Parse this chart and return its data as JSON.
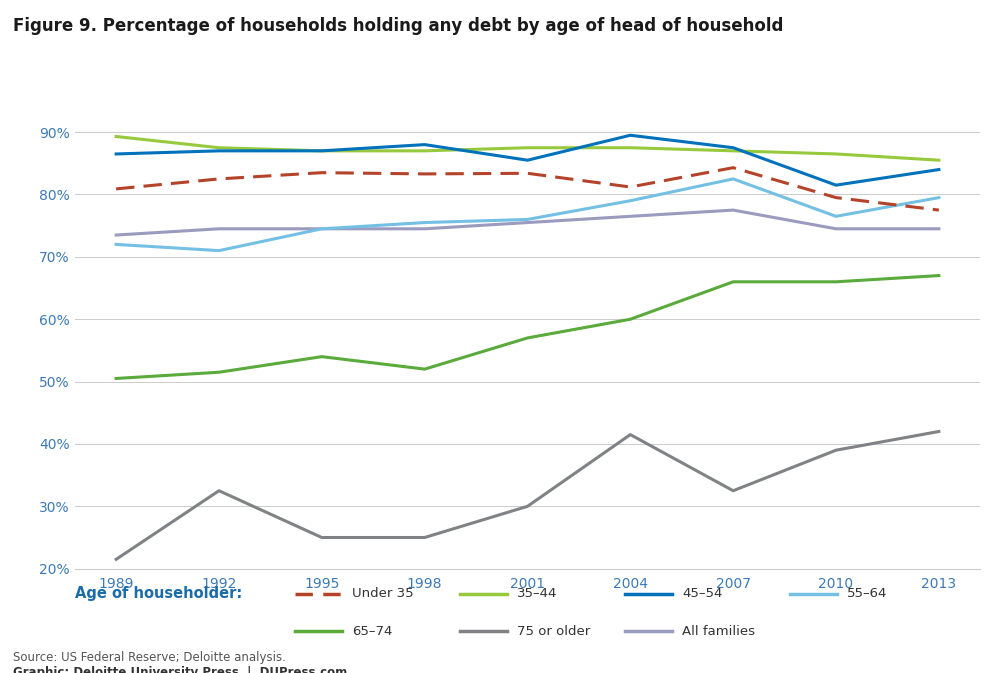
{
  "title": "Figure 9. Percentage of households holding any debt by age of head of household",
  "years": [
    1989,
    1992,
    1995,
    1998,
    2001,
    2004,
    2007,
    2010,
    2013
  ],
  "series": {
    "Under 35": {
      "values": [
        80.9,
        82.5,
        83.5,
        83.3,
        83.4,
        81.2,
        84.3,
        79.5,
        77.5
      ],
      "color": "#b5432a",
      "linestyle": "dashed",
      "linewidth": 2.2,
      "zorder": 4
    },
    "35–44": {
      "values": [
        89.3,
        87.5,
        87.0,
        87.0,
        87.5,
        87.5,
        87.0,
        86.5,
        85.5
      ],
      "color": "#97c93d",
      "linestyle": "solid",
      "linewidth": 2.2,
      "zorder": 4
    },
    "45–54": {
      "values": [
        86.5,
        87.0,
        87.0,
        88.0,
        85.5,
        89.5,
        87.5,
        81.5,
        84.0
      ],
      "color": "#0072bc",
      "linestyle": "solid",
      "linewidth": 2.2,
      "zorder": 4
    },
    "55–64": {
      "values": [
        72.0,
        71.0,
        74.5,
        75.5,
        76.0,
        79.0,
        82.5,
        76.5,
        79.5
      ],
      "color": "#74c0e4",
      "linestyle": "solid",
      "linewidth": 2.2,
      "zorder": 3
    },
    "65–74": {
      "values": [
        50.5,
        51.5,
        54.0,
        52.0,
        57.0,
        60.0,
        66.0,
        66.0,
        67.0
      ],
      "color": "#5aaa3c",
      "linestyle": "solid",
      "linewidth": 2.2,
      "zorder": 3
    },
    "75 or older": {
      "values": [
        21.5,
        32.5,
        25.0,
        25.0,
        30.0,
        41.5,
        32.5,
        39.0,
        42.0
      ],
      "color": "#808285",
      "linestyle": "solid",
      "linewidth": 2.2,
      "zorder": 3
    },
    "All families": {
      "values": [
        73.5,
        74.5,
        74.5,
        74.5,
        75.5,
        76.5,
        77.5,
        74.5,
        74.5
      ],
      "color": "#9b9bc0",
      "linestyle": "solid",
      "linewidth": 2.2,
      "zorder": 2
    }
  },
  "ylim": [
    20,
    95
  ],
  "yticks": [
    20,
    30,
    40,
    50,
    60,
    70,
    80,
    90
  ],
  "ytick_labels": [
    "20%",
    "30%",
    "40%",
    "50%",
    "60%",
    "70%",
    "80%",
    "90%"
  ],
  "xtick_color": "#3d7ab5",
  "ytick_color": "#3d7ab5",
  "legend_title": "Age of householder:",
  "legend_title_color": "#1b6ca8",
  "source_text": "Source: US Federal Reserve; Deloitte analysis.",
  "graphic_text": "Graphic: Deloitte University Press  |  DUPress.com",
  "title_fontsize": 12,
  "axis_fontsize": 10,
  "legend_fontsize": 9.5
}
